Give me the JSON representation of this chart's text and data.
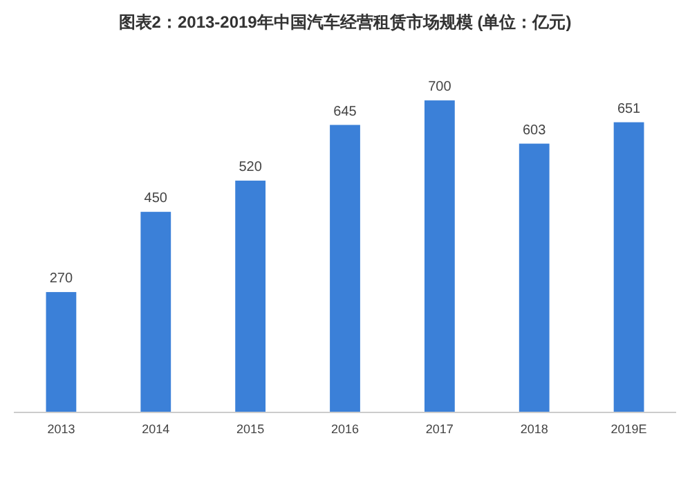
{
  "chart_data": {
    "type": "bar",
    "title": "图表2：2013-2019年中国汽车经营租赁市场规模 (单位：亿元)",
    "categories": [
      "2013",
      "2014",
      "2015",
      "2016",
      "2017",
      "2018",
      "2019E"
    ],
    "values": [
      270,
      450,
      520,
      645,
      700,
      603,
      651
    ],
    "color": "#3b80d8",
    "data_labels": true
  }
}
